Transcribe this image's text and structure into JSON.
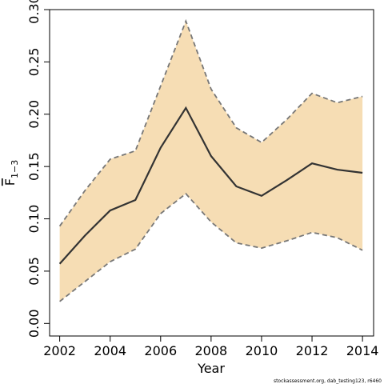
{
  "chart_data": {
    "type": "line",
    "x_label": "Year",
    "y_label": "F",
    "y_label_sub": "1−3",
    "footer": "stockassessment.org, dab_testing123, r6460",
    "x": [
      2002,
      2003,
      2004,
      2005,
      2006,
      2007,
      2008,
      2009,
      2010,
      2011,
      2012,
      2013,
      2014
    ],
    "values": [
      0.057,
      0.084,
      0.108,
      0.118,
      0.168,
      0.206,
      0.16,
      0.131,
      0.122,
      0.137,
      0.153,
      0.147,
      0.144
    ],
    "upper": [
      0.093,
      0.127,
      0.157,
      0.165,
      0.227,
      0.289,
      0.224,
      0.187,
      0.173,
      0.195,
      0.22,
      0.211,
      0.217
    ],
    "lower": [
      0.021,
      0.04,
      0.059,
      0.071,
      0.105,
      0.124,
      0.097,
      0.077,
      0.072,
      0.079,
      0.087,
      0.082,
      0.07
    ],
    "color": "#333333",
    "band_color": "#f6ddb4",
    "band_line_color": "#777777",
    "xlim": [
      2001.6,
      2014.44
    ],
    "ylim": [
      -0.012,
      0.3
    ],
    "xticks": [
      2002,
      2004,
      2006,
      2008,
      2010,
      2012,
      2014
    ],
    "yticks": [
      {
        "value": 0,
        "label": "0.00"
      },
      {
        "value": 0.05,
        "label": "0.05"
      },
      {
        "value": 0.1,
        "label": "0.10"
      },
      {
        "value": 0.15,
        "label": "0.15"
      },
      {
        "value": 0.2,
        "label": "0.20"
      },
      {
        "value": 0.25,
        "label": "0.25"
      },
      {
        "value": 0.3,
        "label": "0.30"
      }
    ]
  }
}
